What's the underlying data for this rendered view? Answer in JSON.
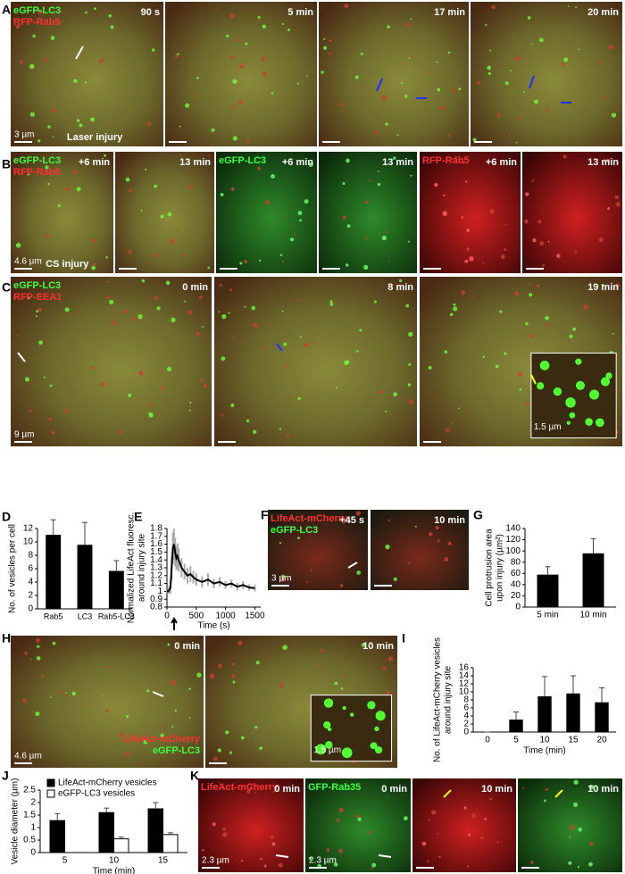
{
  "figure": {
    "panels": [
      {
        "letter": "A",
        "tiles": [
          {
            "bg": "merge",
            "channels": [
              {
                "text": "eGFP-LC3",
                "color": "#3cff3c"
              },
              {
                "text": "RFP-Rab5",
                "color": "#ff3030"
              }
            ],
            "time": "90 s",
            "scale": "3 µm",
            "note": "Laser injury"
          },
          {
            "bg": "merge",
            "time": "5 min"
          },
          {
            "bg": "merge",
            "time": "17 min"
          },
          {
            "bg": "merge",
            "time": "20 min"
          }
        ]
      },
      {
        "letter": "B",
        "tiles": [
          {
            "bg": "merge",
            "channels": [
              {
                "text": "eGFP-LC3",
                "color": "#3cff3c"
              },
              {
                "text": "RFP-Rab5",
                "color": "#ff3030"
              }
            ],
            "time": "+6 min",
            "scale": "4.6 µm",
            "note": "CS injury"
          },
          {
            "bg": "merge",
            "time": "13 min"
          },
          {
            "bg": "green",
            "channels": [
              {
                "text": "eGFP-LC3",
                "color": "#3cff3c"
              }
            ],
            "time": "+6 min"
          },
          {
            "bg": "green",
            "time": "13 min"
          },
          {
            "bg": "red",
            "channels": [
              {
                "text": "RFP-Rab5",
                "color": "#ff3030"
              }
            ],
            "time": "+6 min"
          },
          {
            "bg": "red",
            "time": "13 min"
          }
        ]
      },
      {
        "letter": "C",
        "tiles": [
          {
            "bg": "merge",
            "channels": [
              {
                "text": "eGFP-LC3",
                "color": "#3cff3c"
              },
              {
                "text": "RFP-EEA1",
                "color": "#ff3030"
              }
            ],
            "time": "0 min",
            "scale": "9 µm"
          },
          {
            "bg": "merge",
            "time": "8 min"
          },
          {
            "bg": "merge",
            "time": "19 min",
            "inset_scale": "1.5 µm"
          }
        ]
      },
      {
        "letter": "F",
        "tiles": [
          {
            "bg": "dark",
            "channels": [
              {
                "text": "LifeAct-mCherry",
                "color": "#ff3030"
              },
              {
                "text": "eGFP-LC3",
                "color": "#3cff3c"
              }
            ],
            "time": "+45 s",
            "scale": "3 µm"
          },
          {
            "bg": "dark",
            "time": "10 min"
          }
        ]
      },
      {
        "letter": "H",
        "tiles": [
          {
            "bg": "merge",
            "time": "0 min",
            "scale": "4.6 µm",
            "channels_bottom": [
              {
                "text": "LifeAct-mCherry",
                "color": "#ff3030"
              },
              {
                "text": "eGFP-LC3",
                "color": "#3cff3c"
              }
            ]
          },
          {
            "bg": "merge",
            "time": "10 min",
            "inset_scale": "1.5 µm"
          }
        ]
      },
      {
        "letter": "K",
        "tiles": [
          {
            "bg": "red",
            "channels": [
              {
                "text": "LifeAct-mCherry",
                "color": "#ff3030"
              }
            ],
            "time": "0 min",
            "scale": "2.3 µm"
          },
          {
            "bg": "green",
            "channels": [
              {
                "text": "GFP-Rab35",
                "color": "#3cff3c"
              }
            ],
            "time": "0 min",
            "scale": "2.3 µm"
          },
          {
            "bg": "red",
            "time": "10 min"
          },
          {
            "bg": "green",
            "time": "10 min"
          }
        ]
      }
    ]
  },
  "chart_data": [
    {
      "panel": "D",
      "type": "bar",
      "ylabel": [
        "No. of vesicles per cell"
      ],
      "categories": [
        "Rab5",
        "LC3",
        "Rab5-LC3"
      ],
      "series": [
        {
          "color": "#000000",
          "values": [
            11,
            9.5,
            5.6
          ],
          "errors": [
            2.3,
            3.4,
            1.6
          ]
        }
      ],
      "ylim": [
        0,
        12
      ],
      "yticks": [
        0,
        2,
        4,
        6,
        8,
        10,
        12
      ]
    },
    {
      "panel": "E",
      "type": "line",
      "ylabel": [
        "Normalized LifeAct fluoresc.",
        "around injury site"
      ],
      "xlabel": "Time (s)",
      "x": [
        0,
        20,
        40,
        60,
        80,
        100,
        120,
        140,
        160,
        180,
        200,
        250,
        300,
        350,
        400,
        450,
        500,
        600,
        700,
        800,
        900,
        1000,
        1100,
        1200,
        1300,
        1400,
        1500
      ],
      "series": [
        {
          "color": "#000000",
          "values": [
            1.0,
            1.0,
            1.02,
            1.05,
            1.3,
            1.55,
            1.6,
            1.5,
            1.42,
            1.45,
            1.4,
            1.3,
            1.25,
            1.2,
            1.22,
            1.18,
            1.15,
            1.12,
            1.15,
            1.1,
            1.12,
            1.08,
            1.1,
            1.06,
            1.08,
            1.05,
            1.04
          ],
          "errors": [
            0.02,
            0.03,
            0.05,
            0.08,
            0.15,
            0.2,
            0.2,
            0.18,
            0.15,
            0.16,
            0.15,
            0.12,
            0.1,
            0.1,
            0.1,
            0.08,
            0.08,
            0.07,
            0.08,
            0.06,
            0.06,
            0.05,
            0.05,
            0.05,
            0.05,
            0.04,
            0.04
          ]
        }
      ],
      "xlim": [
        0,
        1600
      ],
      "xticks": [
        0,
        500,
        1000,
        1500
      ],
      "ylim": [
        0.8,
        1.8
      ],
      "yticks": [
        0.8,
        0.9,
        1,
        1.1,
        1.2,
        1.3,
        1.4,
        1.5,
        1.6,
        1.7,
        1.8
      ]
    },
    {
      "panel": "G",
      "type": "bar",
      "ylabel": [
        "Cell protrusion area",
        "upon injury (µm²)"
      ],
      "categories": [
        "5 min",
        "10 min"
      ],
      "series": [
        {
          "color": "#000000",
          "values": [
            57,
            95
          ],
          "errors": [
            15,
            27
          ]
        }
      ],
      "ylim": [
        0,
        140
      ],
      "yticks": [
        0,
        20,
        40,
        60,
        80,
        100,
        120,
        140
      ]
    },
    {
      "panel": "I",
      "type": "bar",
      "ylabel": [
        "No. of LifeAct-mCherry vesicles",
        "around injury site"
      ],
      "xlabel": "Time (min)",
      "categories": [
        "0",
        "5",
        "10",
        "15",
        "20"
      ],
      "series": [
        {
          "color": "#000000",
          "values": [
            0,
            3,
            8.8,
            9.5,
            7.3
          ],
          "errors": [
            0,
            2,
            5,
            4.5,
            3.7
          ]
        }
      ],
      "ylim": [
        0,
        16
      ],
      "yticks": [
        0,
        2,
        4,
        6,
        8,
        10,
        12,
        14,
        16
      ]
    },
    {
      "panel": "J",
      "type": "bar",
      "ylabel": [
        "Vesicle diameter (µm)"
      ],
      "xlabel": "Time (min)",
      "categories": [
        "5",
        "10",
        "15"
      ],
      "series": [
        {
          "name": "LifeAct-mCherry vesicles",
          "color": "#000000",
          "values": [
            1.28,
            1.6,
            1.75
          ],
          "errors": [
            0.28,
            0.18,
            0.25
          ]
        },
        {
          "name": "eGFP-LC3 vesicles",
          "color": "#ffffff",
          "values": [
            null,
            0.55,
            0.72
          ],
          "errors": [
            null,
            0.07,
            0.07
          ]
        }
      ],
      "ylim": [
        0,
        2.5
      ],
      "yticks": [
        0,
        0.5,
        1,
        1.5,
        2,
        2.5
      ],
      "legend": "top-left"
    }
  ]
}
